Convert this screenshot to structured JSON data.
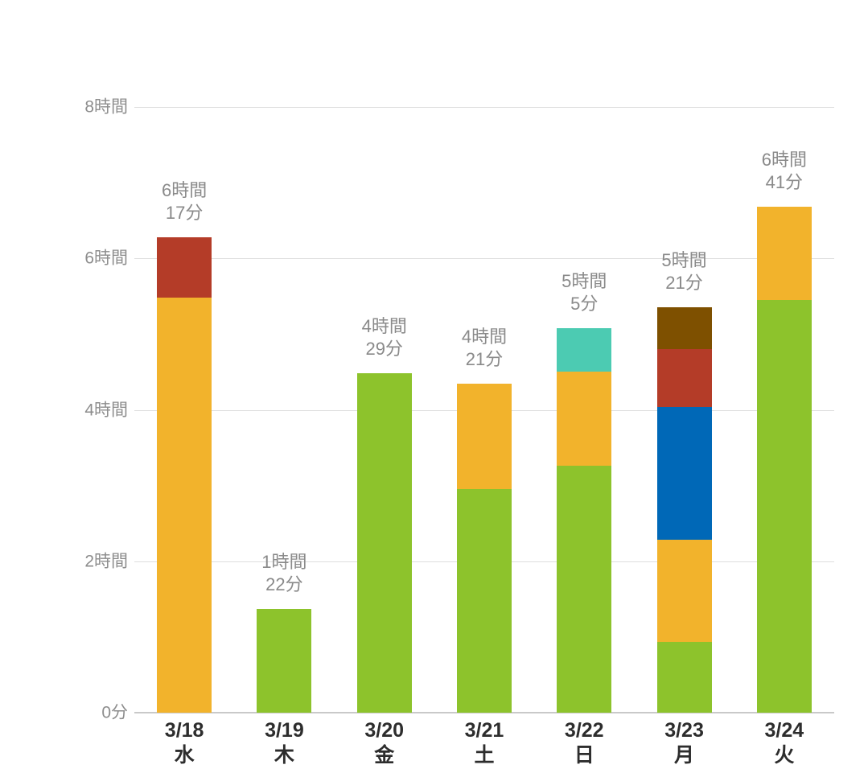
{
  "chart_data": {
    "type": "bar",
    "stacked": true,
    "title": "",
    "unit": "minutes",
    "legend": "none",
    "grid": "horizontal",
    "y_axis": {
      "max_minutes": 480,
      "ticks": [
        {
          "label": "0分",
          "minutes": 0
        },
        {
          "label": "2時間",
          "minutes": 120
        },
        {
          "label": "4時間",
          "minutes": 240
        },
        {
          "label": "6時間",
          "minutes": 360
        },
        {
          "label": "8時間",
          "minutes": 480
        }
      ]
    },
    "colors": {
      "green": "#8dc32c",
      "orange": "#f2b32c",
      "teal": "#4ccbb2",
      "blue": "#0068b7",
      "red": "#b43c28",
      "brown": "#7e5000"
    },
    "bars": [
      {
        "date": "3/18",
        "weekday": "水",
        "total_label_line1": "6時間",
        "total_label_line2": "17分",
        "total_minutes": 377,
        "segments": [
          {
            "color": "orange",
            "minutes": 329
          },
          {
            "color": "red",
            "minutes": 48
          }
        ]
      },
      {
        "date": "3/19",
        "weekday": "木",
        "total_label_line1": "1時間",
        "total_label_line2": "22分",
        "total_minutes": 82,
        "segments": [
          {
            "color": "green",
            "minutes": 82
          }
        ]
      },
      {
        "date": "3/20",
        "weekday": "金",
        "total_label_line1": "4時間",
        "total_label_line2": "29分",
        "total_minutes": 269,
        "segments": [
          {
            "color": "green",
            "minutes": 269
          }
        ]
      },
      {
        "date": "3/21",
        "weekday": "土",
        "total_label_line1": "4時間",
        "total_label_line2": "21分",
        "total_minutes": 261,
        "segments": [
          {
            "color": "green",
            "minutes": 177
          },
          {
            "color": "orange",
            "minutes": 84
          }
        ]
      },
      {
        "date": "3/22",
        "weekday": "日",
        "total_label_line1": "5時間",
        "total_label_line2": "5分",
        "total_minutes": 305,
        "segments": [
          {
            "color": "green",
            "minutes": 196
          },
          {
            "color": "orange",
            "minutes": 74
          },
          {
            "color": "teal",
            "minutes": 35
          }
        ]
      },
      {
        "date": "3/23",
        "weekday": "月",
        "total_label_line1": "5時間",
        "total_label_line2": "21分",
        "total_minutes": 321,
        "segments": [
          {
            "color": "green",
            "minutes": 56
          },
          {
            "color": "orange",
            "minutes": 81
          },
          {
            "color": "blue",
            "minutes": 105
          },
          {
            "color": "red",
            "minutes": 46
          },
          {
            "color": "brown",
            "minutes": 33
          }
        ]
      },
      {
        "date": "3/24",
        "weekday": "火",
        "total_label_line1": "6時間",
        "total_label_line2": "41分",
        "total_minutes": 401,
        "segments": [
          {
            "color": "green",
            "minutes": 327
          },
          {
            "color": "orange",
            "minutes": 74
          }
        ]
      }
    ],
    "style_colors": {
      "background": "#ffffff",
      "gridline": "#dedede",
      "baseline": "#c9c9c9",
      "y_tick_label": "#8d8d8d",
      "value_label": "#8a8a8a",
      "x_tick_label": "#2d2d2d"
    }
  }
}
